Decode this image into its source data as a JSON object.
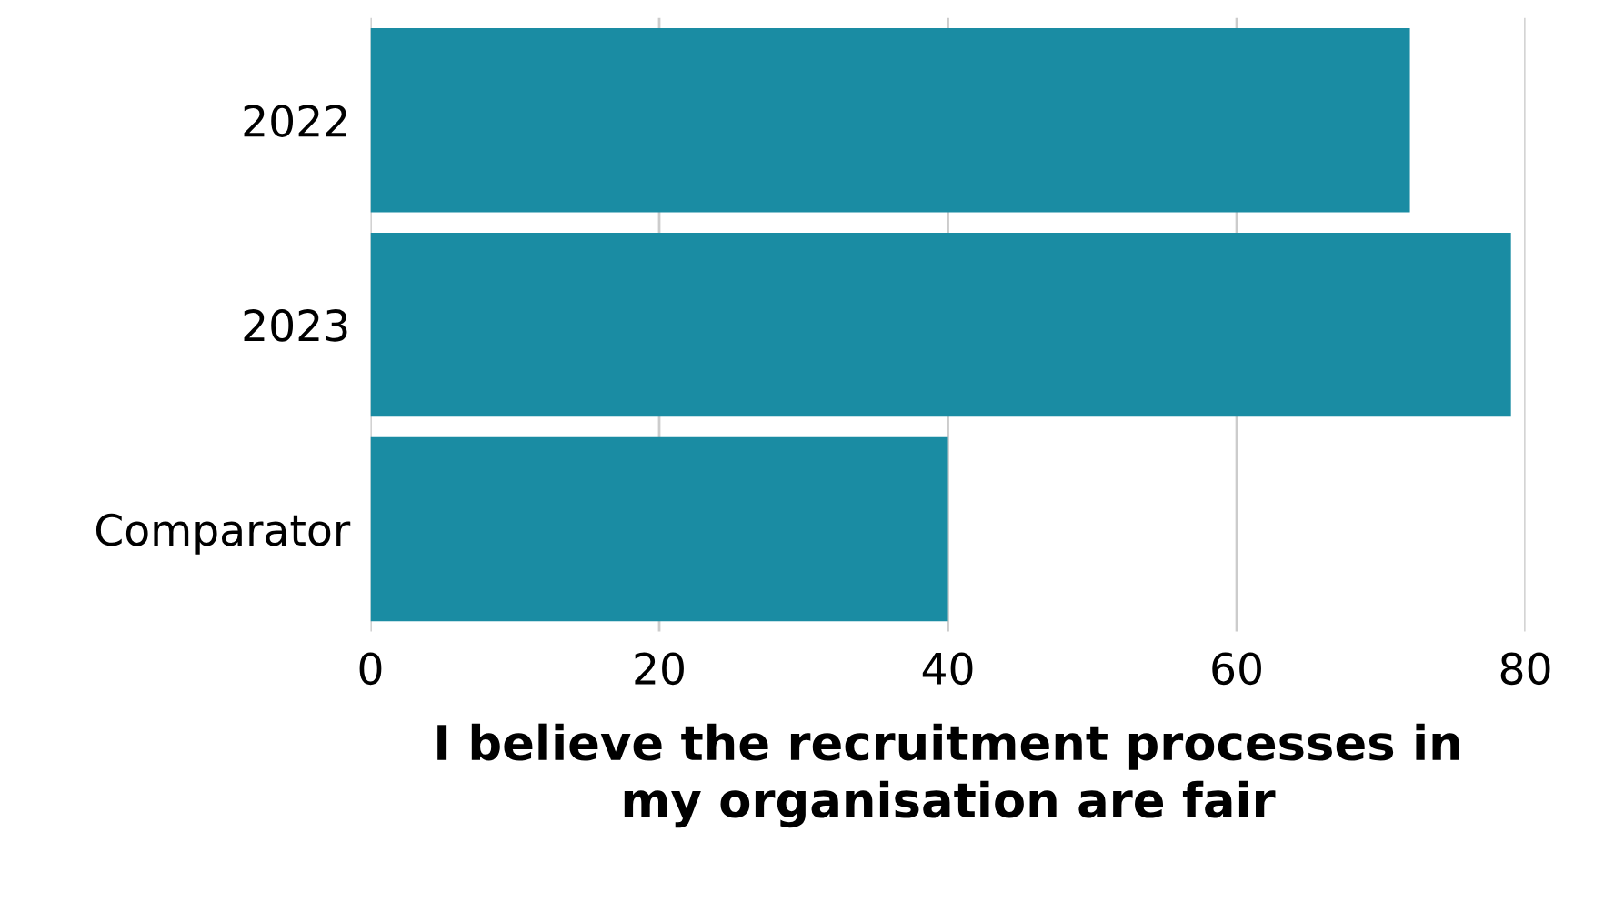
{
  "chart_data": {
    "type": "bar",
    "orientation": "horizontal",
    "categories": [
      "2022",
      "2023",
      "Comparator"
    ],
    "values": [
      72,
      79,
      40
    ],
    "color": "#1a8ca3",
    "xlabel": "I believe the recruitment processes in\nmy organisation are fair",
    "xlim": [
      0,
      80
    ],
    "xticks": [
      0,
      20,
      40,
      60,
      80
    ],
    "grid": "x",
    "legend": false
  }
}
